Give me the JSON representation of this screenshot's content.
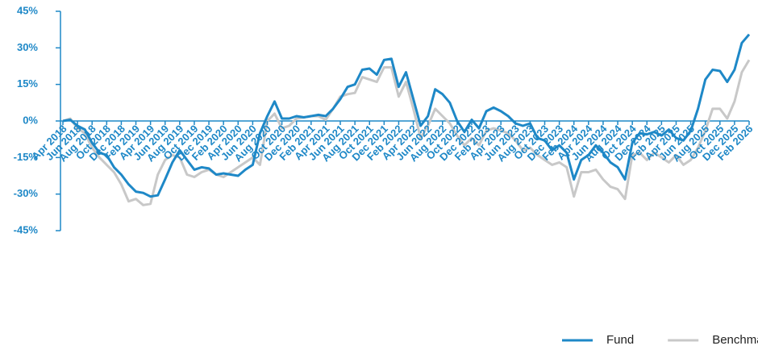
{
  "chart_data": {
    "type": "line",
    "categories": [
      "Apr 2018",
      null,
      "Jun 2018",
      null,
      "Aug 2018",
      null,
      "Oct 2018",
      null,
      "Dec 2018",
      null,
      "Feb 2019",
      null,
      "Apr 2019",
      null,
      "Jun 2019",
      null,
      "Aug 2019",
      null,
      "Oct 2019",
      null,
      "Dec 2019",
      null,
      "Feb 2020",
      null,
      "Apr 2020",
      null,
      "Jun 2020",
      null,
      "Aug 2020",
      null,
      "Oct 2020",
      null,
      "Dec 2020",
      null,
      "Feb 2021",
      null,
      "Apr 2021",
      null,
      "Jun 2021",
      null,
      "Aug 2021",
      null,
      "Oct 2021",
      null,
      "Dec 2021",
      null,
      "Feb 2022",
      null,
      "Apr 2022",
      null,
      "Jun 2022",
      null,
      "Aug 2022",
      null,
      "Oct 2022",
      null,
      "Dec 2022",
      null,
      "Feb 2023",
      null,
      "Apr 2023",
      null,
      "Jun 2023",
      null,
      "Aug 2023",
      null,
      "Oct 2023",
      null,
      "Dec 2023",
      null,
      "Feb 2024",
      null,
      "Apr 2024",
      null,
      "Jun 2024",
      null,
      "Aug 2024",
      null,
      "Oct 2024",
      null,
      "Dec 2024",
      null,
      "Feb 2025",
      null,
      "Apr 2025",
      null,
      "Jun 2025",
      null,
      "Aug 2025",
      null,
      "Oct 2025",
      null,
      "Dec 2025",
      null,
      "Feb 2026"
    ],
    "series": [
      {
        "name": "Fund",
        "color": "#1e88c7",
        "values": [
          0,
          0.5,
          -2,
          -3.5,
          -9,
          -13,
          -14,
          -19,
          -22,
          -26,
          -29,
          -29.5,
          -31,
          -30.5,
          -24,
          -17,
          -12,
          -16,
          -20,
          -19,
          -19.5,
          -22,
          -21.5,
          -22,
          -22.5,
          -20,
          -18,
          -5,
          2,
          8,
          1,
          1,
          2,
          1.5,
          2,
          2.5,
          2,
          5,
          9,
          14,
          15,
          21,
          21.5,
          19,
          25,
          25.5,
          14,
          20,
          9,
          -2,
          2,
          13,
          11,
          7.5,
          0,
          -4.5,
          0.5,
          -3,
          4,
          5.5,
          4,
          2,
          -1,
          -2,
          -1,
          -7,
          -8,
          -12,
          -10,
          -13,
          -24,
          -16,
          -14,
          -10,
          -13,
          -17,
          -19,
          -24,
          -9,
          -5,
          -5.5,
          -4.5,
          -6,
          -3.5,
          -7,
          -8,
          -4,
          5,
          17,
          21,
          20.5,
          16,
          21,
          32,
          35.5
        ]
      },
      {
        "name": "Benchmark",
        "color": "#c8c8c8",
        "values": [
          0,
          1,
          -3,
          -5,
          -11,
          -15,
          -18,
          -21,
          -26,
          -33,
          -32,
          -34.5,
          -34,
          -22,
          -16,
          -14,
          -15,
          -22,
          -23,
          -21,
          -20,
          -22,
          -23,
          -21,
          -19,
          -17,
          -15,
          -18,
          0,
          3,
          -3,
          -2,
          1,
          1.5,
          2,
          2,
          0.5,
          5,
          10,
          11,
          11.5,
          18,
          17,
          16,
          22,
          22,
          10,
          16,
          5,
          -7,
          -2,
          5,
          2,
          -1,
          -6,
          -10,
          -7,
          -10,
          -4,
          -3,
          -4,
          -5,
          -8,
          -12,
          -11,
          -14,
          -16,
          -18,
          -17,
          -19,
          -31,
          -21,
          -21,
          -20,
          -24,
          -27,
          -28,
          -32,
          -14,
          -13,
          -16,
          -13,
          -15,
          -17,
          -14,
          -18,
          -16,
          -11,
          -4,
          5,
          5,
          1,
          8,
          20,
          25
        ]
      }
    ],
    "ylim": [
      -45,
      45
    ],
    "yticks": [
      {
        "value": -45,
        "label": "-45%"
      },
      {
        "value": -30,
        "label": "-30%"
      },
      {
        "value": -15,
        "label": "-15%"
      },
      {
        "value": 0,
        "label": "0%"
      },
      {
        "value": 15,
        "label": "15%"
      },
      {
        "value": 30,
        "label": "30%"
      },
      {
        "value": 45,
        "label": "45%"
      }
    ],
    "axis_color": "#1e88c7"
  }
}
